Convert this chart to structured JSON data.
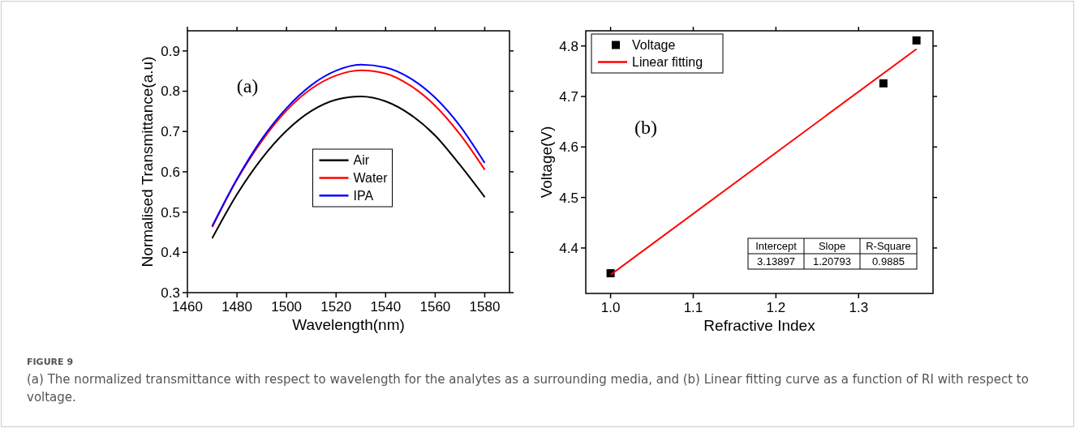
{
  "chart_data": [
    {
      "type": "line",
      "xlabel": "Wavelength(nm)",
      "ylabel": "Normalised Transmittance(a.u)",
      "x": [
        1470,
        1480,
        1490,
        1500,
        1510,
        1520,
        1530,
        1540,
        1550,
        1560,
        1570,
        1580
      ],
      "series": [
        {
          "name": "Air",
          "color": "#000000",
          "values": [
            0.435,
            0.544,
            0.633,
            0.702,
            0.751,
            0.779,
            0.787,
            0.775,
            0.742,
            0.69,
            0.617,
            0.537
          ]
        },
        {
          "name": "Water",
          "color": "#ff0000",
          "values": [
            0.463,
            0.58,
            0.676,
            0.752,
            0.806,
            0.839,
            0.852,
            0.844,
            0.814,
            0.764,
            0.693,
            0.605
          ]
        },
        {
          "name": "IPA",
          "color": "#0000ff",
          "values": [
            0.465,
            0.582,
            0.681,
            0.758,
            0.815,
            0.851,
            0.866,
            0.859,
            0.832,
            0.784,
            0.714,
            0.622
          ]
        }
      ],
      "xlim": [
        1460,
        1590
      ],
      "xticks": [
        1460,
        1480,
        1500,
        1520,
        1540,
        1560,
        1580
      ],
      "ylim": [
        0.3,
        0.95
      ],
      "yticks": [
        0.3,
        0.4,
        0.5,
        0.6,
        0.7,
        0.8,
        0.9
      ],
      "legend": "center",
      "grid": false,
      "line_style": "solid",
      "annotations": [
        "(a)"
      ]
    },
    {
      "type": "scatter",
      "xlabel": "Refractive Index",
      "ylabel": "Voltage(V)",
      "series": [
        {
          "name": "Voltage",
          "color": "#000000",
          "x": [
            1.0,
            1.33,
            1.37
          ],
          "values": [
            4.35,
            4.726,
            4.811
          ]
        },
        {
          "name": "Linear fitting",
          "type": "line",
          "marker": "none",
          "color": "#ff0000",
          "x": [
            1.0,
            1.37
          ],
          "values": [
            4.347,
            4.794
          ]
        }
      ],
      "xlim": [
        0.97,
        1.39
      ],
      "xticks": [
        {
          "value": 1.0,
          "label": "1.0"
        },
        1.1,
        1.2,
        1.3
      ],
      "ylim": [
        4.31,
        4.83
      ],
      "yticks": [
        4.4,
        4.5,
        4.6,
        4.7,
        4.8
      ],
      "legend": "top left",
      "grid": false,
      "marker": "square",
      "line_style": "solid",
      "annotations": [
        "(b)",
        "Intercept",
        "Slope",
        "R-Square",
        "3.13897",
        "1.20793",
        "0.9885",
        "FIGURE 9",
        "(a) The normalized transmittance with respect to wavelength for the analytes as a surrounding media, and (b) Linear fitting curve as a function of RI with respect to voltage."
      ]
    }
  ]
}
